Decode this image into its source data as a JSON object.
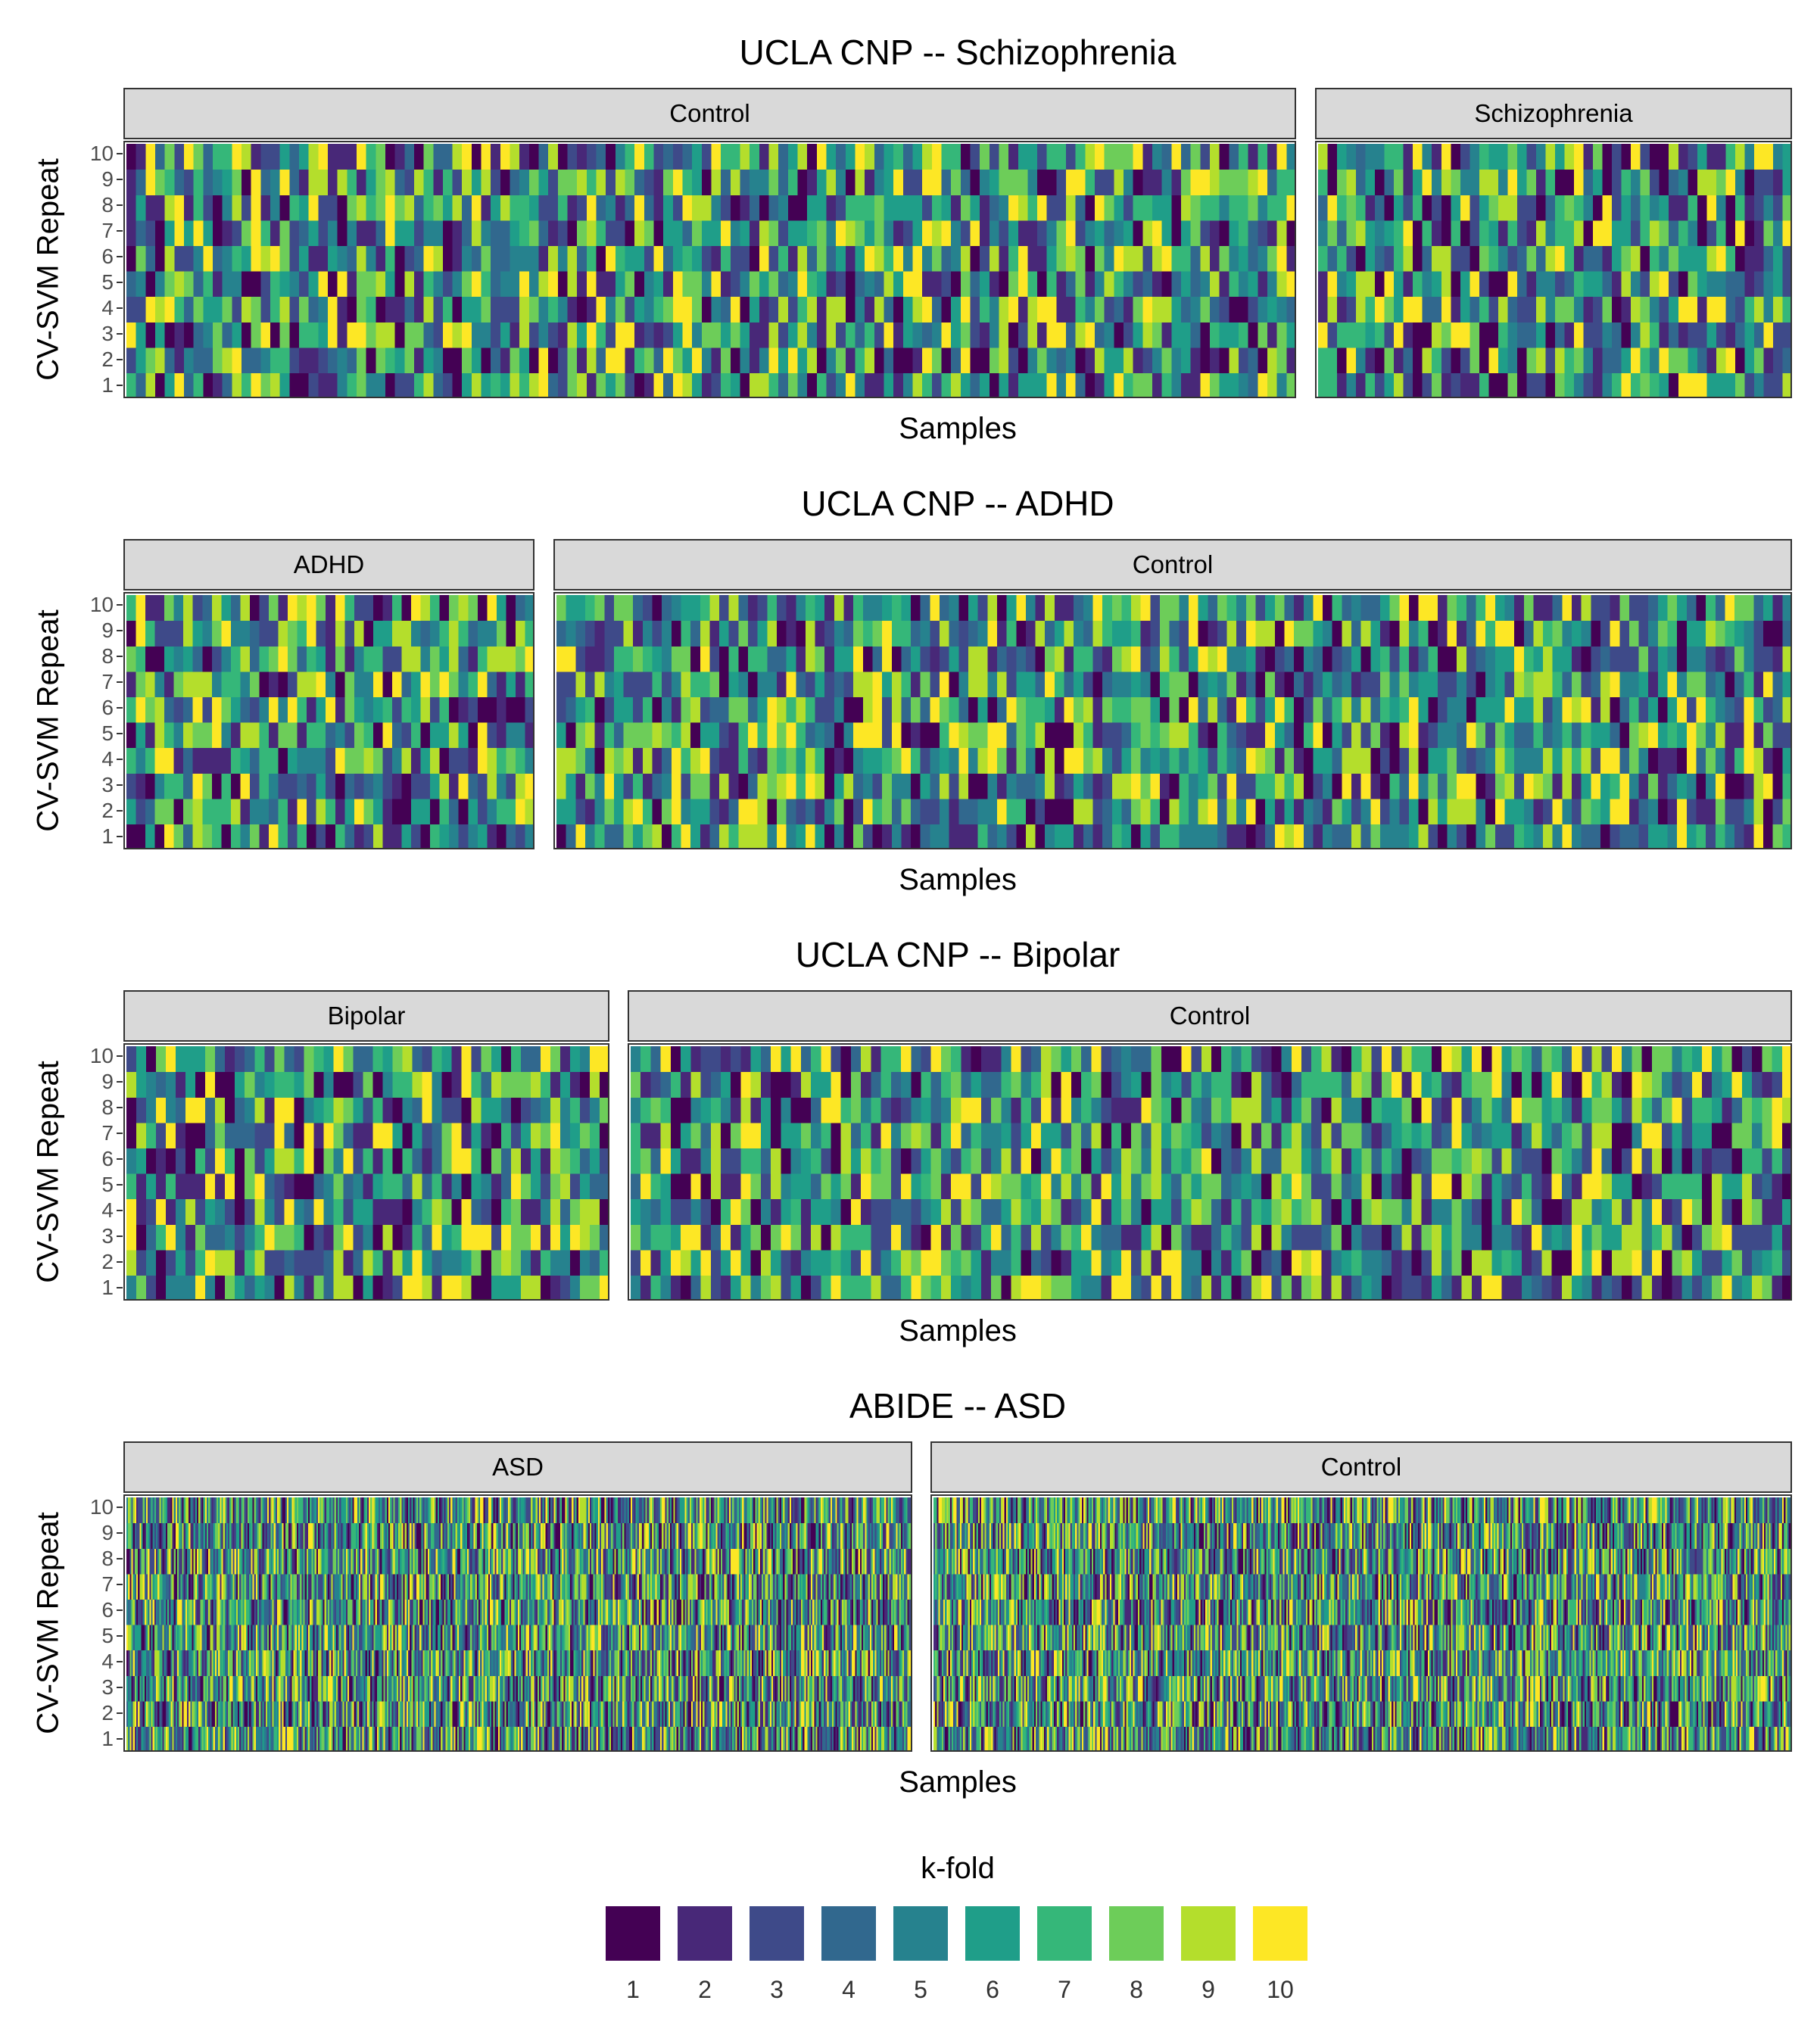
{
  "chart_data": [
    {
      "type": "heatmap",
      "title": "UCLA CNP -- Schizophrenia",
      "xlabel": "Samples",
      "ylabel": "CV-SVM Repeat",
      "y_ticks": [
        "1",
        "2",
        "3",
        "4",
        "5",
        "6",
        "7",
        "8",
        "9",
        "10"
      ],
      "facets": [
        {
          "name": "Control",
          "n_samples": 122
        },
        {
          "name": "Schizophrenia",
          "n_samples": 50
        }
      ]
    },
    {
      "type": "heatmap",
      "title": "UCLA CNP -- ADHD",
      "xlabel": "Samples",
      "ylabel": "CV-SVM Repeat",
      "y_ticks": [
        "1",
        "2",
        "3",
        "4",
        "5",
        "6",
        "7",
        "8",
        "9",
        "10"
      ],
      "facets": [
        {
          "name": "ADHD",
          "n_samples": 43
        },
        {
          "name": "Control",
          "n_samples": 129
        }
      ]
    },
    {
      "type": "heatmap",
      "title": "UCLA CNP -- Bipolar",
      "xlabel": "Samples",
      "ylabel": "CV-SVM Repeat",
      "y_ticks": [
        "1",
        "2",
        "3",
        "4",
        "5",
        "6",
        "7",
        "8",
        "9",
        "10"
      ],
      "facets": [
        {
          "name": "Bipolar",
          "n_samples": 49
        },
        {
          "name": "Control",
          "n_samples": 116
        }
      ]
    },
    {
      "type": "heatmap",
      "title": "ABIDE -- ASD",
      "xlabel": "Samples",
      "ylabel": "CV-SVM Repeat",
      "y_ticks": [
        "1",
        "2",
        "3",
        "4",
        "5",
        "6",
        "7",
        "8",
        "9",
        "10"
      ],
      "facets": [
        {
          "name": "ASD",
          "n_samples": 480
        },
        {
          "name": "Control",
          "n_samples": 521
        }
      ]
    }
  ],
  "legend": {
    "title": "k-fold",
    "entries": [
      {
        "label": "1",
        "color": "#440154"
      },
      {
        "label": "2",
        "color": "#482878"
      },
      {
        "label": "3",
        "color": "#3E4A89"
      },
      {
        "label": "4",
        "color": "#31688E"
      },
      {
        "label": "5",
        "color": "#26828E"
      },
      {
        "label": "6",
        "color": "#1F9E89"
      },
      {
        "label": "7",
        "color": "#35B779"
      },
      {
        "label": "8",
        "color": "#6DCD59"
      },
      {
        "label": "9",
        "color": "#B4DE2C"
      },
      {
        "label": "10",
        "color": "#FDE725"
      }
    ]
  }
}
